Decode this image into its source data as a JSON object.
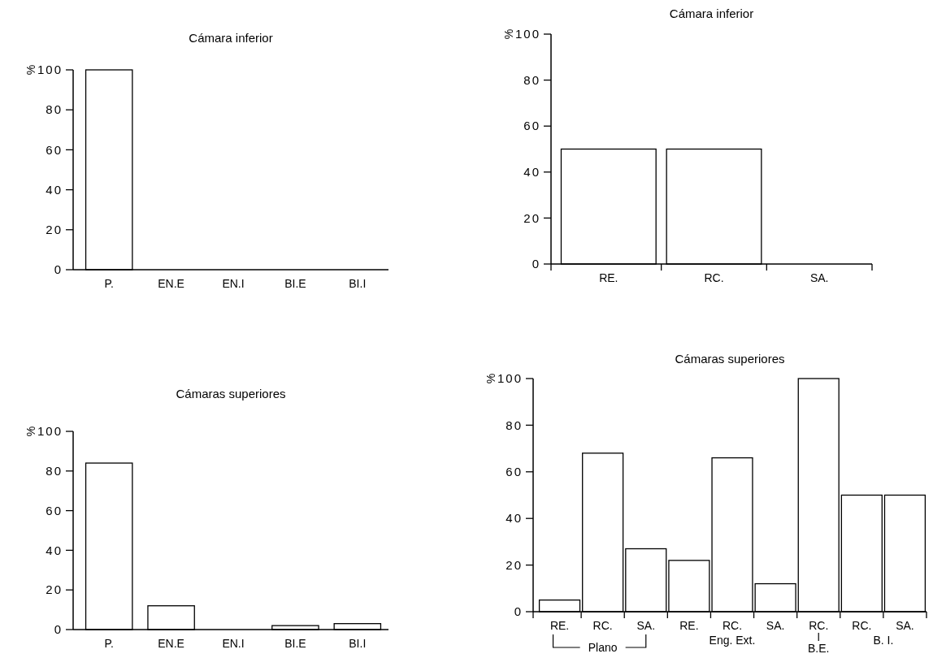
{
  "chart_data": [
    {
      "type": "bar",
      "title": "Cámara inferior",
      "ylabel": "%",
      "categories": [
        "P.",
        "EN.E",
        "EN.I",
        "BI.E",
        "BI.I"
      ],
      "values": [
        100,
        0,
        0,
        0,
        0
      ],
      "color": "#ffffff",
      "ylim": [
        0,
        100
      ],
      "yticks": [
        0,
        20,
        40,
        60,
        80,
        100
      ],
      "grid": false
    },
    {
      "type": "bar",
      "title": "Cámara inferior",
      "ylabel": "%",
      "categories": [
        "RE.",
        "RC.",
        "SA."
      ],
      "values": [
        50,
        50,
        0
      ],
      "color": "#ffffff",
      "ylim": [
        0,
        100
      ],
      "yticks": [
        0,
        20,
        40,
        60,
        80,
        100
      ],
      "grid": false
    },
    {
      "type": "bar",
      "title": "Cámaras superiores",
      "ylabel": "%",
      "categories": [
        "P.",
        "EN.E",
        "EN.I",
        "BI.E",
        "BI.I"
      ],
      "values": [
        84,
        12,
        0,
        2,
        3
      ],
      "color": "#ffffff",
      "ylim": [
        0,
        100
      ],
      "yticks": [
        0,
        20,
        40,
        60,
        80,
        100
      ],
      "grid": false
    },
    {
      "type": "bar",
      "title": "Cámaras superiores",
      "ylabel": "%",
      "categories": [
        "RE.",
        "RC.",
        "SA.",
        "RE.",
        "RC.",
        "SA.",
        "RC.",
        "RC.",
        "SA."
      ],
      "values": [
        5,
        68,
        27,
        22,
        66,
        12,
        100,
        50,
        50
      ],
      "color": "#ffffff",
      "ylim": [
        0,
        100
      ],
      "yticks": [
        0,
        20,
        40,
        60,
        80,
        100
      ],
      "grid": false,
      "annotations": [
        "Plano",
        "Eng. Ext.",
        "B.E.",
        "B. I."
      ]
    }
  ]
}
